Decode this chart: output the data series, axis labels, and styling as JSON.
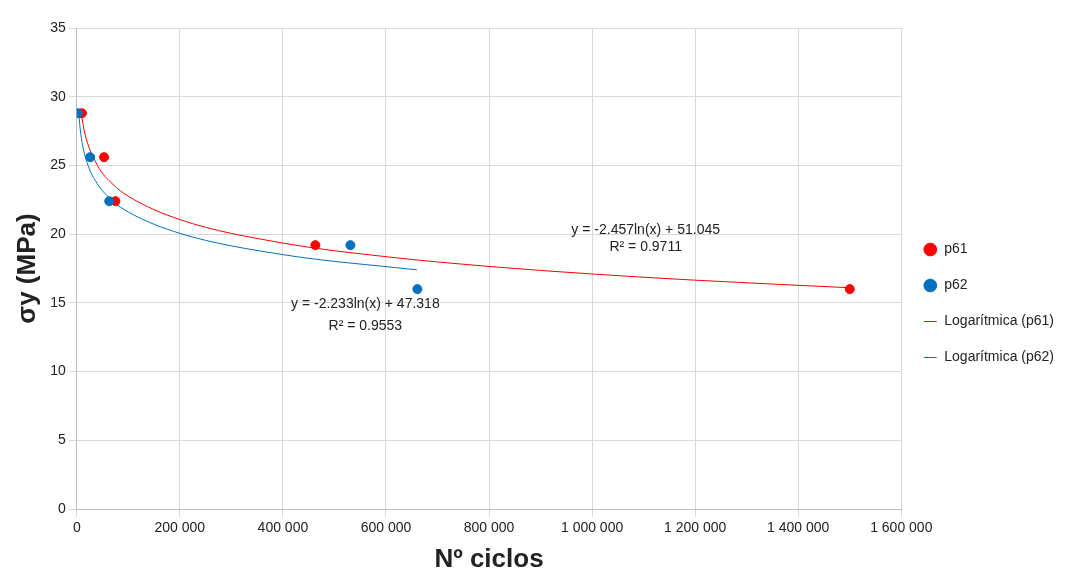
{
  "chart_data": {
    "type": "scatter",
    "xlabel": "Nº ciclos",
    "ylabel": "σy (MPa)",
    "xlim": [
      0,
      1600000
    ],
    "xticks": [
      0,
      {
        "value": 200000,
        "label": "200 000"
      },
      {
        "value": 400000,
        "label": "400 000"
      },
      {
        "value": 600000,
        "label": "600 000"
      },
      {
        "value": 800000,
        "label": "800 000"
      },
      {
        "value": 1000000,
        "label": "1 000 000"
      },
      {
        "value": 1200000,
        "label": "1 200 000"
      },
      {
        "value": 1400000,
        "label": "1 400 000"
      },
      {
        "value": 1600000,
        "label": "1 600 000"
      }
    ],
    "ylim": [
      0,
      35
    ],
    "yticks": [
      0,
      5,
      10,
      15,
      20,
      25,
      30,
      35
    ],
    "grid": true,
    "legend": "right",
    "marker": "circle",
    "series": [
      {
        "name": "p61",
        "color": "#ff0000",
        "x": [
          10000,
          53000,
          75000,
          463000,
          1500000
        ],
        "values": [
          28.8,
          25.6,
          22.4,
          19.2,
          16
        ]
      },
      {
        "name": "p62",
        "color": "#0070c0",
        "x": [
          2000,
          26000,
          63000,
          531000,
          661000
        ],
        "values": [
          28.8,
          25.6,
          22.4,
          19.2,
          16
        ]
      },
      {
        "name": "Logarítmica (p61)",
        "type": "line",
        "color": "#ff0000",
        "marker": "none",
        "x": [
          8550,
          15000,
          40000,
          70000,
          100000,
          200000,
          400000,
          600000,
          800000,
          1000000,
          1200000,
          1500000
        ],
        "values": [
          28.8,
          27.42,
          25.01,
          23.63,
          22.76,
          21.06,
          19.35,
          18.36,
          17.65,
          17.1,
          16.65,
          16.1
        ]
      },
      {
        "name": "Logarítmica (p62)",
        "type": "line",
        "color": "#0070c0",
        "marker": "none",
        "x": [
          4000,
          6000,
          10000,
          20000,
          40000,
          70000,
          100000,
          200000,
          400000,
          660000
        ],
        "values": [
          28.8,
          27.89,
          26.75,
          25.2,
          23.66,
          22.41,
          21.61,
          20.06,
          18.51,
          17.4
        ]
      }
    ],
    "annotations": [
      "y = -2.457ln(x) + 51.045",
      "R² = 0.9711",
      "y = -2.233ln(x) + 47.318",
      "R² = 0.9553"
    ]
  }
}
